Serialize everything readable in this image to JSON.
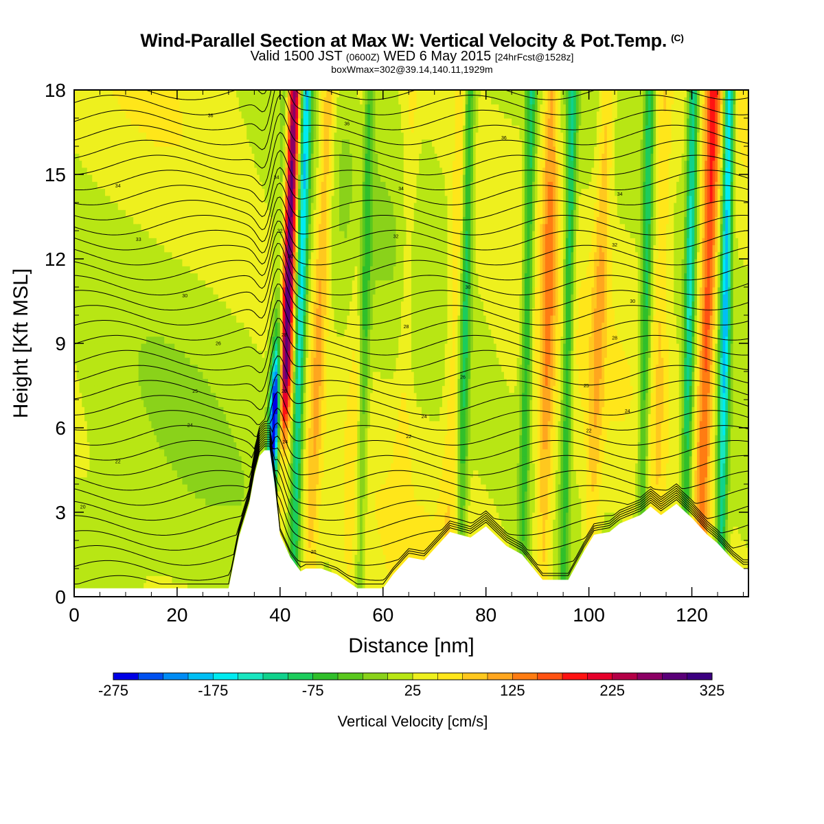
{
  "title": {
    "main": "Wind-Parallel Section at Max W: Vertical Velocity & Pot.Temp.",
    "copyright": "(C)",
    "valid_prefix": "Valid 1500 JST",
    "valid_utc": "(0600Z)",
    "valid_date": "WED 6 May 2015",
    "forecast": "[24hrFcst@1528z]",
    "box": "boxWmax=302@39.14,140.11,1929m"
  },
  "chart_data": {
    "type": "heatmap",
    "xlabel": "Distance [nm]",
    "ylabel": "Height [Kft MSL]",
    "xlim": [
      0,
      131
    ],
    "ylim": [
      0,
      18
    ],
    "x_ticks": [
      "0",
      "20",
      "40",
      "60",
      "80",
      "100",
      "120"
    ],
    "y_ticks": [
      "0",
      "3",
      "6",
      "9",
      "12",
      "15",
      "18"
    ],
    "background_w_cm_s": 25,
    "updraft_bands": [
      {
        "x": 39.7,
        "x_shift_per_kft": 0.17,
        "peak_w": 300
      },
      {
        "x": 45.5,
        "x_shift_per_kft": 0.22,
        "peak_w": 110
      },
      {
        "x": 53,
        "x_shift_per_kft": 0.2,
        "peak_w": 55
      },
      {
        "x": 63,
        "x_shift_per_kft": 0.15,
        "peak_w": 55
      },
      {
        "x": 72,
        "x_shift_per_kft": 0.2,
        "peak_w": 70
      },
      {
        "x": 91,
        "x_shift_per_kft": 0.1,
        "peak_w": 120
      },
      {
        "x": 100,
        "x_shift_per_kft": 0.2,
        "peak_w": 90
      },
      {
        "x": 113,
        "x_shift_per_kft": 0.1,
        "peak_w": 70
      },
      {
        "x": 121.5,
        "x_shift_per_kft": 0.15,
        "peak_w": 170
      }
    ],
    "downdraft_bands": [
      {
        "x": 37.5,
        "x_shift_per_kft": 0.22,
        "min_w": -270
      },
      {
        "x": 42.5,
        "x_shift_per_kft": 0.15,
        "min_w": -160
      },
      {
        "x": 55.5,
        "x_shift_per_kft": 0.1,
        "min_w": -60
      },
      {
        "x": 75,
        "x_shift_per_kft": 0.1,
        "min_w": -90
      },
      {
        "x": 87,
        "x_shift_per_kft": 0.1,
        "min_w": -90
      },
      {
        "x": 95,
        "x_shift_per_kft": 0.1,
        "min_w": -100
      },
      {
        "x": 110,
        "x_shift_per_kft": 0.1,
        "min_w": -90
      },
      {
        "x": 118.5,
        "x_shift_per_kft": 0.1,
        "min_w": -130
      },
      {
        "x": 125.5,
        "x_shift_per_kft": 0.1,
        "min_w": -190
      }
    ],
    "terrain_kft": [
      [
        0,
        0.3
      ],
      [
        30,
        0.3
      ],
      [
        31,
        1.2
      ],
      [
        32,
        2.1
      ],
      [
        34,
        3.3
      ],
      [
        35,
        4.3
      ],
      [
        36,
        5.0
      ],
      [
        37,
        5.2
      ],
      [
        38,
        5.2
      ],
      [
        39,
        3.9
      ],
      [
        40,
        2.2
      ],
      [
        42,
        1.4
      ],
      [
        44,
        0.9
      ],
      [
        45,
        1.0
      ],
      [
        48,
        1.0
      ],
      [
        51,
        0.8
      ],
      [
        55,
        0.3
      ],
      [
        60,
        0.3
      ],
      [
        62,
        0.8
      ],
      [
        65,
        1.4
      ],
      [
        68,
        1.3
      ],
      [
        70,
        1.7
      ],
      [
        73,
        2.3
      ],
      [
        77,
        2.1
      ],
      [
        80,
        2.5
      ],
      [
        84,
        1.8
      ],
      [
        87,
        1.5
      ],
      [
        91,
        0.6
      ],
      [
        96,
        0.6
      ],
      [
        99,
        1.6
      ],
      [
        101,
        2.2
      ],
      [
        104,
        2.3
      ],
      [
        106,
        2.6
      ],
      [
        110,
        2.9
      ],
      [
        112,
        3.2
      ],
      [
        114,
        2.9
      ],
      [
        117,
        3.3
      ],
      [
        120,
        2.8
      ],
      [
        123,
        2.2
      ],
      [
        125,
        1.9
      ],
      [
        128,
        1.3
      ],
      [
        130,
        1.0
      ],
      [
        131,
        1.0
      ]
    ],
    "isentropes": {
      "count": 34,
      "shown_labels": [
        {
          "x": 1.7,
          "y": 3.2,
          "label": "20"
        },
        {
          "x": 8.5,
          "y": 4.8,
          "label": "22"
        },
        {
          "x": 22.5,
          "y": 6.1,
          "label": "24"
        },
        {
          "x": 23.5,
          "y": 7.3,
          "label": "25"
        },
        {
          "x": 28,
          "y": 9.0,
          "label": "26"
        },
        {
          "x": 21.5,
          "y": 10.7,
          "label": "30"
        },
        {
          "x": 12.5,
          "y": 12.7,
          "label": "33"
        },
        {
          "x": 8.5,
          "y": 14.6,
          "label": "34"
        },
        {
          "x": 26.5,
          "y": 17.1,
          "label": "36"
        },
        {
          "x": 39.3,
          "y": 14.9,
          "label": "34"
        },
        {
          "x": 40.0,
          "y": 13.0,
          "label": "32"
        },
        {
          "x": 42.0,
          "y": 12.1,
          "label": "30"
        },
        {
          "x": 40.8,
          "y": 9.3,
          "label": "28"
        },
        {
          "x": 40.8,
          "y": 7.3,
          "label": "26"
        },
        {
          "x": 41.0,
          "y": 5.5,
          "label": "24"
        },
        {
          "x": 46.5,
          "y": 1.6,
          "label": "20"
        },
        {
          "x": 53,
          "y": 16.8,
          "label": "36"
        },
        {
          "x": 63.5,
          "y": 14.5,
          "label": "34"
        },
        {
          "x": 62.5,
          "y": 12.8,
          "label": "32"
        },
        {
          "x": 64.5,
          "y": 9.6,
          "label": "28"
        },
        {
          "x": 76.5,
          "y": 11.0,
          "label": "30"
        },
        {
          "x": 75.5,
          "y": 7.8,
          "label": "26"
        },
        {
          "x": 68,
          "y": 6.4,
          "label": "24"
        },
        {
          "x": 65,
          "y": 5.7,
          "label": "22"
        },
        {
          "x": 83.5,
          "y": 16.3,
          "label": "36"
        },
        {
          "x": 106,
          "y": 14.3,
          "label": "34"
        },
        {
          "x": 105,
          "y": 12.5,
          "label": "32"
        },
        {
          "x": 108.5,
          "y": 10.5,
          "label": "30"
        },
        {
          "x": 105,
          "y": 9.2,
          "label": "28"
        },
        {
          "x": 99.5,
          "y": 7.5,
          "label": "25"
        },
        {
          "x": 107.5,
          "y": 6.6,
          "label": "24"
        },
        {
          "x": 100,
          "y": 5.9,
          "label": "22"
        }
      ]
    }
  },
  "colorbar": {
    "title": "Vertical Velocity [cm/s]",
    "min": -275,
    "max": 325,
    "step": 25,
    "tick_labels": [
      "-275",
      "-175",
      "-75",
      "25",
      "125",
      "225",
      "325"
    ],
    "colors": [
      "#0000e6",
      "#0050f0",
      "#008cf5",
      "#00bff5",
      "#00ebf0",
      "#18e6c0",
      "#10d28c",
      "#1ccc5c",
      "#30bf2a",
      "#5ac81e",
      "#8ad21a",
      "#b8e614",
      "#eef01e",
      "#ffe61a",
      "#ffc81e",
      "#ffa61e",
      "#ff7c12",
      "#ff5212",
      "#ff1212",
      "#e6002a",
      "#b40046",
      "#8c0064",
      "#5a0078",
      "#3c0080"
    ]
  }
}
